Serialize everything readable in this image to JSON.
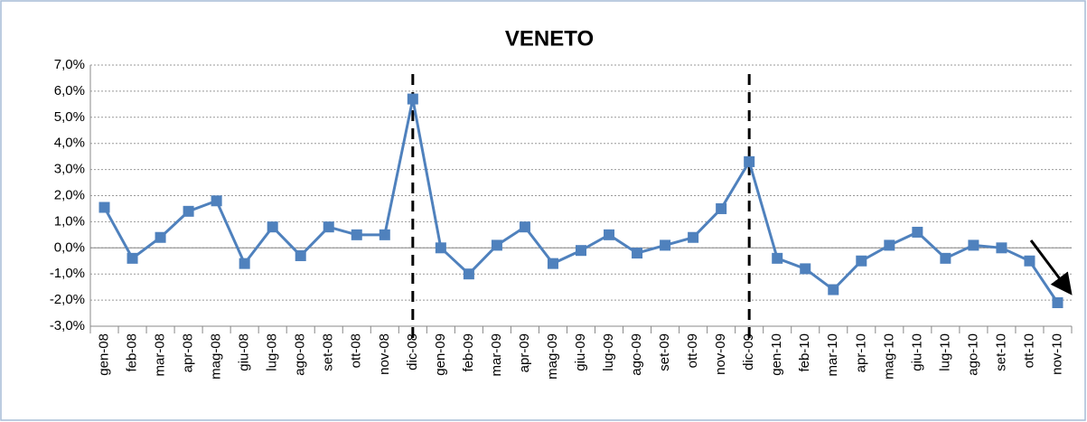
{
  "chart_data": {
    "type": "line",
    "title": "VENETO",
    "categories": [
      "gen-08",
      "feb-08",
      "mar-08",
      "apr-08",
      "mag-08",
      "giu-08",
      "lug-08",
      "ago-08",
      "set-08",
      "ott-08",
      "nov-08",
      "dic-08",
      "gen-09",
      "feb-09",
      "mar-09",
      "apr-09",
      "mag-09",
      "giu-09",
      "lug-09",
      "ago-09",
      "set-09",
      "ott-09",
      "nov-09",
      "dic-09",
      "gen-10",
      "feb-10",
      "mar-10",
      "apr-10",
      "mag-10",
      "giu-10",
      "lug-10",
      "ago-10",
      "set-10",
      "ott-10",
      "nov-10"
    ],
    "series": [
      {
        "name": "VENETO",
        "color": "#4f81bd",
        "values": [
          1.55,
          -0.4,
          0.4,
          1.4,
          1.8,
          -0.6,
          0.8,
          -0.3,
          0.8,
          0.5,
          0.5,
          5.7,
          0.0,
          -1.0,
          0.1,
          0.8,
          -0.6,
          -0.1,
          0.5,
          -0.2,
          0.1,
          0.4,
          1.5,
          3.3,
          -0.4,
          -0.8,
          -1.6,
          -0.5,
          0.1,
          0.6,
          -0.4,
          0.1,
          0.0,
          -0.5,
          -2.1
        ]
      }
    ],
    "ylim": [
      -3,
      7
    ],
    "yticks": [
      {
        "value": -3,
        "label": "-3,0%"
      },
      {
        "value": -2,
        "label": "-2,0%"
      },
      {
        "value": -1,
        "label": "-1,0%"
      },
      {
        "value": 0,
        "label": "0,0%"
      },
      {
        "value": 1,
        "label": "1,0%"
      },
      {
        "value": 2,
        "label": "2,0%"
      },
      {
        "value": 3,
        "label": "3,0%"
      },
      {
        "value": 4,
        "label": "4,0%"
      },
      {
        "value": 5,
        "label": "5,0%"
      },
      {
        "value": 6,
        "label": "6,0%"
      },
      {
        "value": 7,
        "label": "7,0%"
      }
    ],
    "grid": true
  }
}
